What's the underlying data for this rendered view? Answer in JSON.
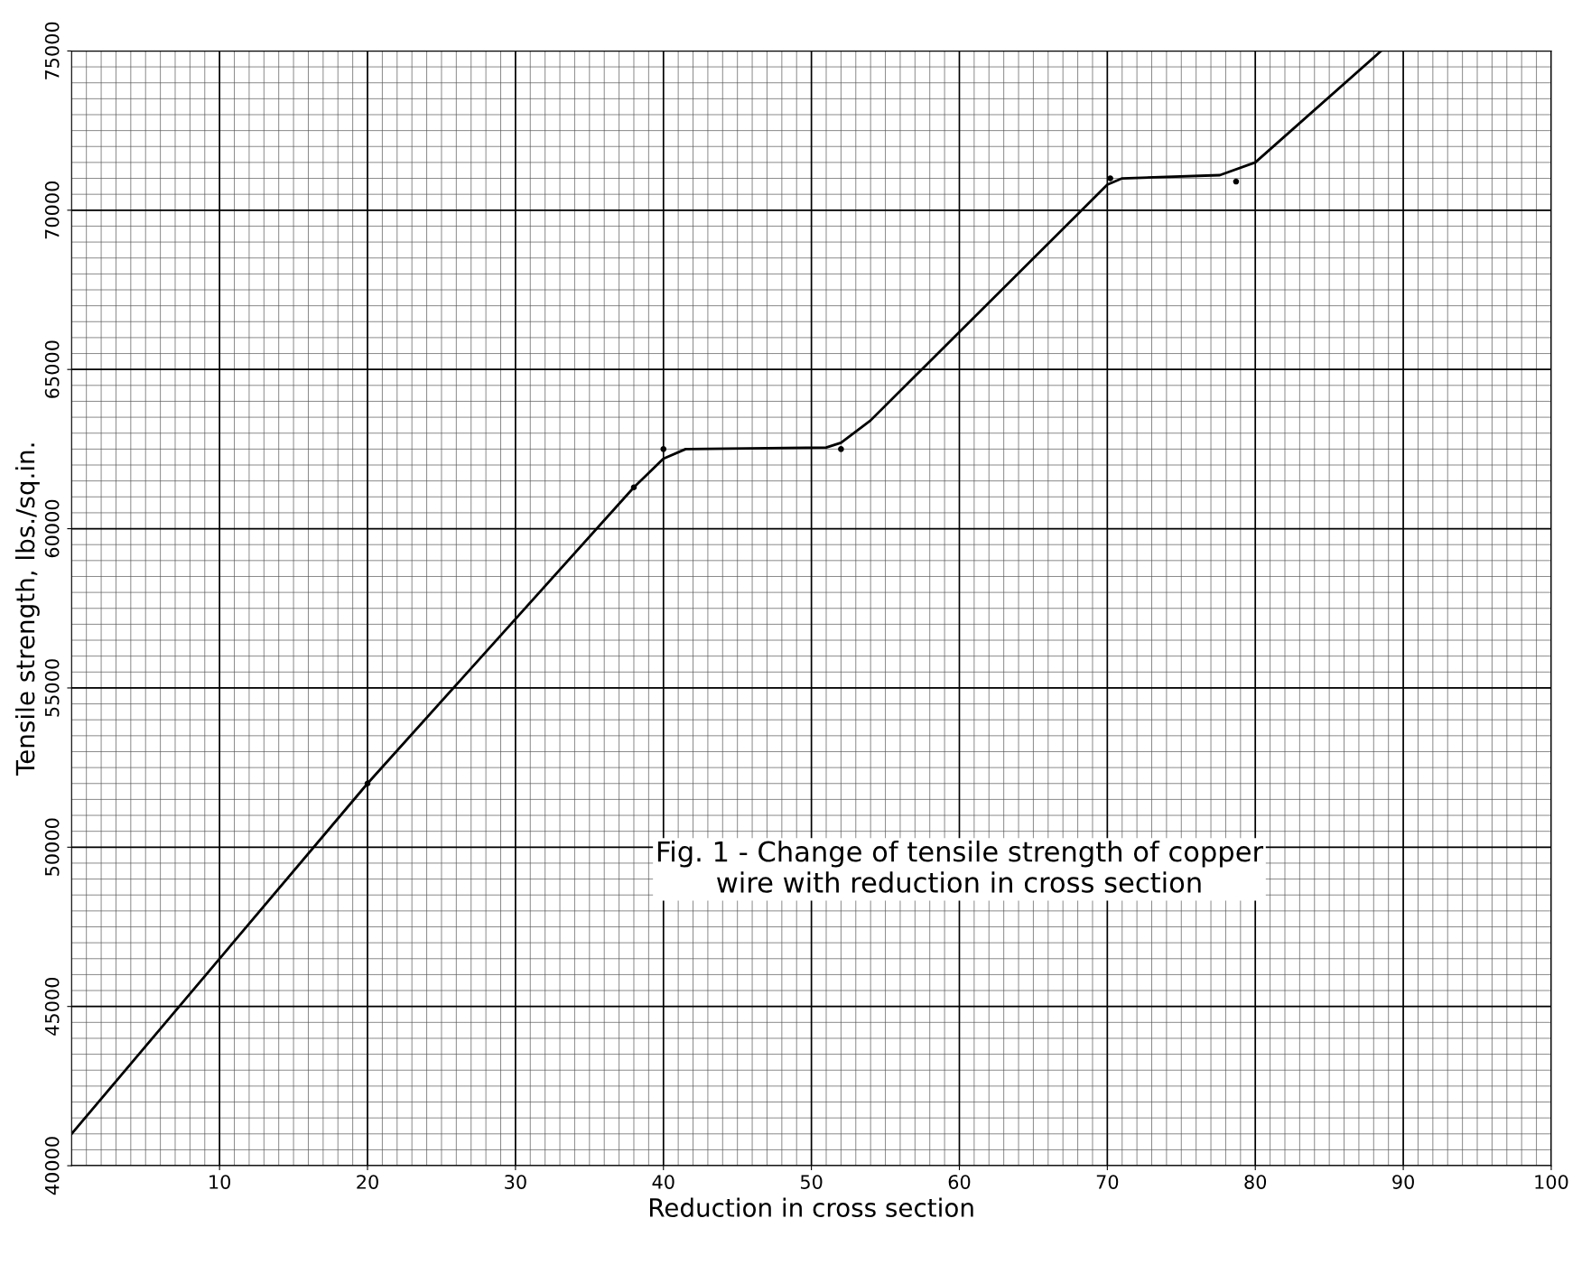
{
  "chart_data": {
    "type": "line",
    "xlabel": "Reduction in cross section",
    "ylabel": "Tensile strength, lbs./sq.in.",
    "annotations": [
      "Fig. 1 - Change of tensile strength of copper\nwire with reduction in cross section"
    ],
    "xlim": [
      0,
      100
    ],
    "ylim": [
      40000,
      75000
    ],
    "xticks": [
      10,
      20,
      30,
      40,
      50,
      60,
      70,
      80,
      90,
      100
    ],
    "yticks": [
      40000,
      45000,
      50000,
      55000,
      60000,
      65000,
      70000,
      75000
    ],
    "grid": true,
    "line_style": "solid",
    "series": [
      {
        "color": "#000000",
        "marker": "none",
        "x": [
          0,
          20,
          38,
          40,
          41.5,
          51,
          52,
          54,
          70,
          71,
          77.6,
          80,
          88.5
        ],
        "values": [
          41000,
          52000,
          61300,
          62200,
          62500,
          62550,
          62700,
          63400,
          70800,
          71000,
          71100,
          71500,
          75000
        ]
      },
      {
        "type": "scatter",
        "color": "#000000",
        "marker": "circle",
        "x": [
          20,
          38,
          40,
          52,
          70.2,
          78.7
        ],
        "values": [
          52000,
          61300,
          62500,
          62500,
          71000,
          70900
        ]
      }
    ]
  }
}
